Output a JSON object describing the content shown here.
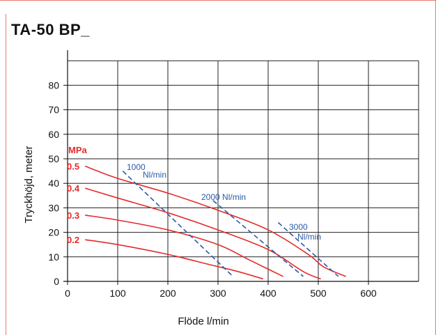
{
  "title": "TA-50 BP_",
  "chart_data": {
    "type": "line",
    "xlabel": "Flöde l/min",
    "ylabel": "Tryckhöjd, meter",
    "xlim": [
      0,
      700
    ],
    "ylim": [
      0,
      90
    ],
    "xticks": [
      0,
      100,
      200,
      300,
      400,
      500,
      600
    ],
    "yticks": [
      0,
      10,
      20,
      30,
      40,
      50,
      60,
      70,
      80
    ],
    "grid": true,
    "pressure_unit_label": "MPa",
    "colors": {
      "pressure": "#e32b2b",
      "air": "#2a5aa6",
      "grid": "#222222"
    },
    "pressure_series": [
      {
        "label": "0.5",
        "points": [
          [
            0,
            47
          ],
          [
            100,
            42
          ],
          [
            200,
            36
          ],
          [
            300,
            29
          ],
          [
            400,
            21
          ],
          [
            480,
            11
          ],
          [
            510,
            6
          ],
          [
            555,
            2
          ]
        ]
      },
      {
        "label": "0.4",
        "points": [
          [
            0,
            38
          ],
          [
            100,
            34
          ],
          [
            200,
            28
          ],
          [
            300,
            21
          ],
          [
            400,
            13
          ],
          [
            470,
            4
          ],
          [
            505,
            1
          ]
        ]
      },
      {
        "label": "0.3",
        "points": [
          [
            0,
            27
          ],
          [
            100,
            25
          ],
          [
            200,
            21
          ],
          [
            300,
            15
          ],
          [
            360,
            9
          ],
          [
            400,
            5
          ],
          [
            430,
            2
          ]
        ]
      },
      {
        "label": "0.2",
        "points": [
          [
            0,
            17
          ],
          [
            100,
            15
          ],
          [
            200,
            11
          ],
          [
            280,
            7
          ],
          [
            340,
            4
          ],
          [
            390,
            1
          ]
        ]
      }
    ],
    "air_series": [
      {
        "label_line1": "1000",
        "label_line2": "Nl/min",
        "points": [
          [
            110,
            45
          ],
          [
            330,
            2
          ]
        ]
      },
      {
        "label_line1": "2000 Nl/min",
        "label_line2": "",
        "points": [
          [
            290,
            33
          ],
          [
            470,
            2
          ]
        ]
      },
      {
        "label_line1": "3000",
        "label_line2": "Nl/min",
        "points": [
          [
            420,
            24
          ],
          [
            540,
            2
          ]
        ]
      }
    ]
  }
}
